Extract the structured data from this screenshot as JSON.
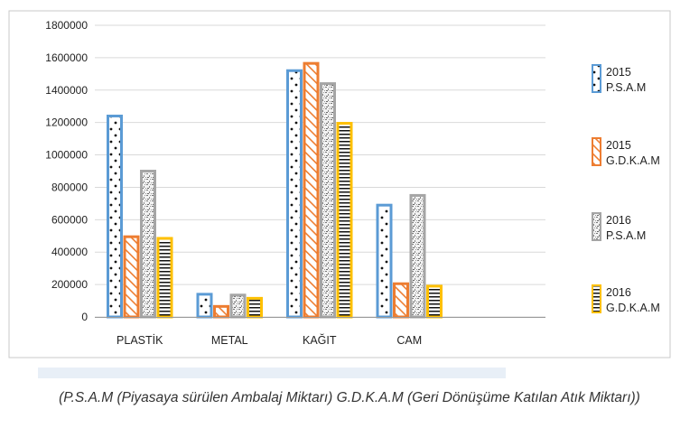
{
  "chart_data": {
    "type": "bar",
    "categories": [
      "PLASTİK",
      "METAL",
      "KAĞIT",
      "CAM"
    ],
    "series": [
      {
        "name_lines": [
          "2015",
          "P.S.A.M"
        ],
        "values": [
          1240000,
          140000,
          1520000,
          690000
        ],
        "color": "#5b9bd5",
        "pattern": "dots"
      },
      {
        "name_lines": [
          "2015",
          "G.D.K.A.M"
        ],
        "values": [
          495000,
          65000,
          1565000,
          205000
        ],
        "color": "#ed7d31",
        "pattern": "diagonal"
      },
      {
        "name_lines": [
          "2016",
          "P.S.A.M"
        ],
        "values": [
          900000,
          135000,
          1440000,
          750000
        ],
        "color": "#a5a5a5",
        "pattern": "speckle"
      },
      {
        "name_lines": [
          "2016",
          "G.D.K.A.M"
        ],
        "values": [
          485000,
          115000,
          1195000,
          190000
        ],
        "color": "#ffc000",
        "pattern": "horizontal"
      }
    ],
    "ylim": [
      0,
      1800000
    ],
    "yticks": [
      "0",
      "200000",
      "400000",
      "600000",
      "800000",
      "1000000",
      "1200000",
      "1400000",
      "1600000",
      "1800000"
    ],
    "grid": true,
    "legend_position": "right"
  },
  "caption": "(P.S.A.M (Piyasaya sürülen Ambalaj Miktarı) G.D.K.A.M (Geri Dönüşüme Katılan Atık Miktarı))"
}
